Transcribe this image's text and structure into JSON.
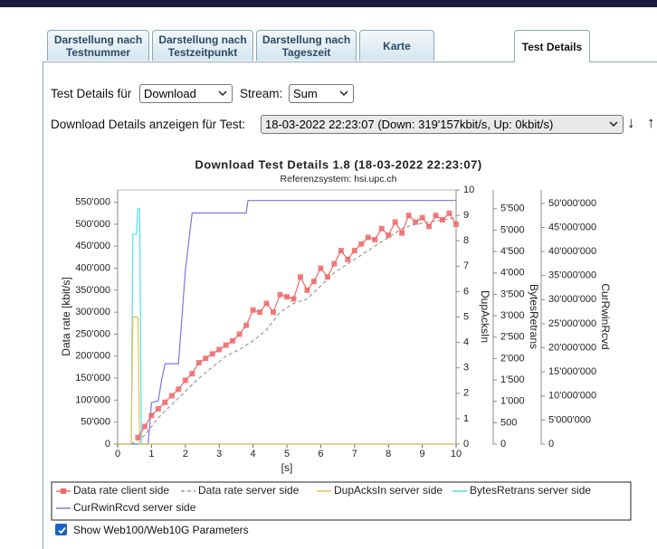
{
  "tabs": [
    "Darstellung nach Testnummer",
    "Darstellung nach Testzeitpunkt",
    "Darstellung nach Tageszeit",
    "Karte",
    "Test Details"
  ],
  "controls": {
    "test_details_label": "Test Details für",
    "test_details_value": "Download",
    "stream_label": "Stream:",
    "stream_value": "Sum",
    "test_label": "Download Details anzeigen für Test:",
    "test_value": "18-03-2022 22:23:07 (Down: 319'157kbit/s, Up: 0kbit/s)",
    "sort_down": "↓",
    "sort_up": "↑"
  },
  "checkbox": {
    "label": "Show Web100/Web10G Parameters",
    "checked": true
  },
  "chart_data": {
    "type": "line",
    "title": "Download Test Details 1.8 (18-03-2022 22:23:07)",
    "subtitle": "Referenzsystem: hsi.upc.ch",
    "x_label": "[s]",
    "y_label": "Data rate [kbit/s]",
    "y2_label": "DupAcksIn",
    "y3_label": "BytesRetrans",
    "y4_label": "CurRwinRcvd",
    "xlim": [
      0,
      10
    ],
    "xticks": [
      0,
      1,
      2,
      3,
      4,
      5,
      6,
      7,
      8,
      9,
      10
    ],
    "ylim": [
      0,
      578000
    ],
    "yticks": [
      0,
      {
        "value": 50000,
        "label": "50'000"
      },
      {
        "value": 100000,
        "label": "100'000"
      },
      {
        "value": 150000,
        "label": "150'000"
      },
      {
        "value": 200000,
        "label": "200'000"
      },
      {
        "value": 250000,
        "label": "250'000"
      },
      {
        "value": 300000,
        "label": "300'000"
      },
      {
        "value": 350000,
        "label": "350'000"
      },
      {
        "value": 400000,
        "label": "400'000"
      },
      {
        "value": 450000,
        "label": "450'000"
      },
      {
        "value": 500000,
        "label": "500'000"
      },
      {
        "value": 550000,
        "label": "550'000"
      }
    ],
    "y2lim": [
      0,
      10
    ],
    "y2ticks": [
      0,
      1,
      2,
      3,
      4,
      5,
      6,
      7,
      8,
      9,
      10
    ],
    "y3lim": [
      0,
      5940
    ],
    "y3ticks": [
      0,
      500,
      {
        "value": 1000,
        "label": "1'000"
      },
      {
        "value": 1500,
        "label": "1'500"
      },
      {
        "value": 2000,
        "label": "2'000"
      },
      {
        "value": 2500,
        "label": "2'500"
      },
      {
        "value": 3000,
        "label": "3'000"
      },
      {
        "value": 3500,
        "label": "3'500"
      },
      {
        "value": 4000,
        "label": "4'000"
      },
      {
        "value": 4500,
        "label": "4'500"
      },
      {
        "value": 5000,
        "label": "5'000"
      },
      {
        "value": 5500,
        "label": "5'500"
      }
    ],
    "y4lim": [
      0,
      52800000
    ],
    "y4ticks": [
      0,
      {
        "value": 5000000,
        "label": "5'000'000"
      },
      {
        "value": 10000000,
        "label": "10'000'000"
      },
      {
        "value": 15000000,
        "label": "15'000'000"
      },
      {
        "value": 20000000,
        "label": "20'000'000"
      },
      {
        "value": 25000000,
        "label": "25'000'000"
      },
      {
        "value": 30000000,
        "label": "30'000'000"
      },
      {
        "value": 35000000,
        "label": "35'000'000"
      },
      {
        "value": 40000000,
        "label": "40'000'000"
      },
      {
        "value": 45000000,
        "label": "45'000'000"
      },
      {
        "value": 50000000,
        "label": "50'000'000"
      }
    ],
    "grid": false,
    "series": [
      {
        "name": "Data rate client side",
        "color": "#f06868",
        "axis": "y",
        "marker": "square",
        "dash": false,
        "x": [
          0.6,
          0.8,
          1.0,
          1.2,
          1.4,
          1.6,
          1.8,
          2.0,
          2.2,
          2.4,
          2.6,
          2.8,
          3.0,
          3.2,
          3.4,
          3.6,
          3.8,
          4.0,
          4.2,
          4.4,
          4.6,
          4.8,
          5.0,
          5.2,
          5.4,
          5.6,
          5.8,
          6.0,
          6.2,
          6.4,
          6.6,
          6.8,
          7.0,
          7.2,
          7.4,
          7.6,
          7.8,
          8.0,
          8.2,
          8.4,
          8.6,
          8.8,
          9.0,
          9.2,
          9.4,
          9.6,
          9.8,
          10.0
        ],
        "values": [
          15000,
          40000,
          65000,
          80000,
          95000,
          110000,
          125000,
          145000,
          160000,
          185000,
          195000,
          205000,
          215000,
          225000,
          235000,
          250000,
          270000,
          305000,
          300000,
          320000,
          300000,
          340000,
          335000,
          330000,
          380000,
          350000,
          370000,
          400000,
          380000,
          410000,
          440000,
          420000,
          440000,
          455000,
          470000,
          465000,
          490000,
          475000,
          505000,
          480000,
          520000,
          505000,
          515000,
          495000,
          520000,
          510000,
          525000,
          500000
        ]
      },
      {
        "name": "Data rate server side",
        "color": "#999999",
        "axis": "y",
        "marker": "none",
        "dash": true,
        "x": [
          0.4,
          0.8,
          1.2,
          1.6,
          2.0,
          2.4,
          2.8,
          3.2,
          3.6,
          4.0,
          4.4,
          4.8,
          5.2,
          5.6,
          6.0,
          6.4,
          6.8,
          7.2,
          7.6,
          8.0,
          8.4,
          8.8,
          9.2,
          9.6,
          10.0
        ],
        "values": [
          0,
          20000,
          60000,
          90000,
          120000,
          150000,
          175000,
          200000,
          215000,
          235000,
          260000,
          300000,
          320000,
          330000,
          360000,
          390000,
          410000,
          430000,
          450000,
          470000,
          490000,
          500000,
          505000,
          510000,
          515000
        ]
      },
      {
        "name": "DupAcksIn server side",
        "color": "#e8c050",
        "axis": "y2",
        "marker": "none",
        "dash": false,
        "x": [
          0,
          0.4,
          0.45,
          0.55,
          0.6,
          0.65,
          1,
          10
        ],
        "values": [
          0,
          0,
          5,
          5,
          5,
          0,
          0,
          0
        ]
      },
      {
        "name": "BytesRetrans server side",
        "color": "#50e0e8",
        "axis": "y3",
        "marker": "none",
        "dash": false,
        "x": [
          0,
          0.4,
          0.45,
          0.55,
          0.6,
          0.65,
          0.7,
          10
        ],
        "values": [
          0,
          0,
          4900,
          4900,
          5500,
          5500,
          0,
          0
        ]
      },
      {
        "name": "CurRwinRcvd server side",
        "color": "#7878e0",
        "axis": "y4",
        "marker": "none",
        "dash": false,
        "x": [
          0,
          0.9,
          1.0,
          1.2,
          1.3,
          1.4,
          1.8,
          2.0,
          2.2,
          3.8,
          3.85,
          10
        ],
        "values": [
          0,
          0,
          8600000,
          9000000,
          13300000,
          16700000,
          16700000,
          36000000,
          48000000,
          48000000,
          50600000,
          50600000
        ]
      }
    ]
  }
}
